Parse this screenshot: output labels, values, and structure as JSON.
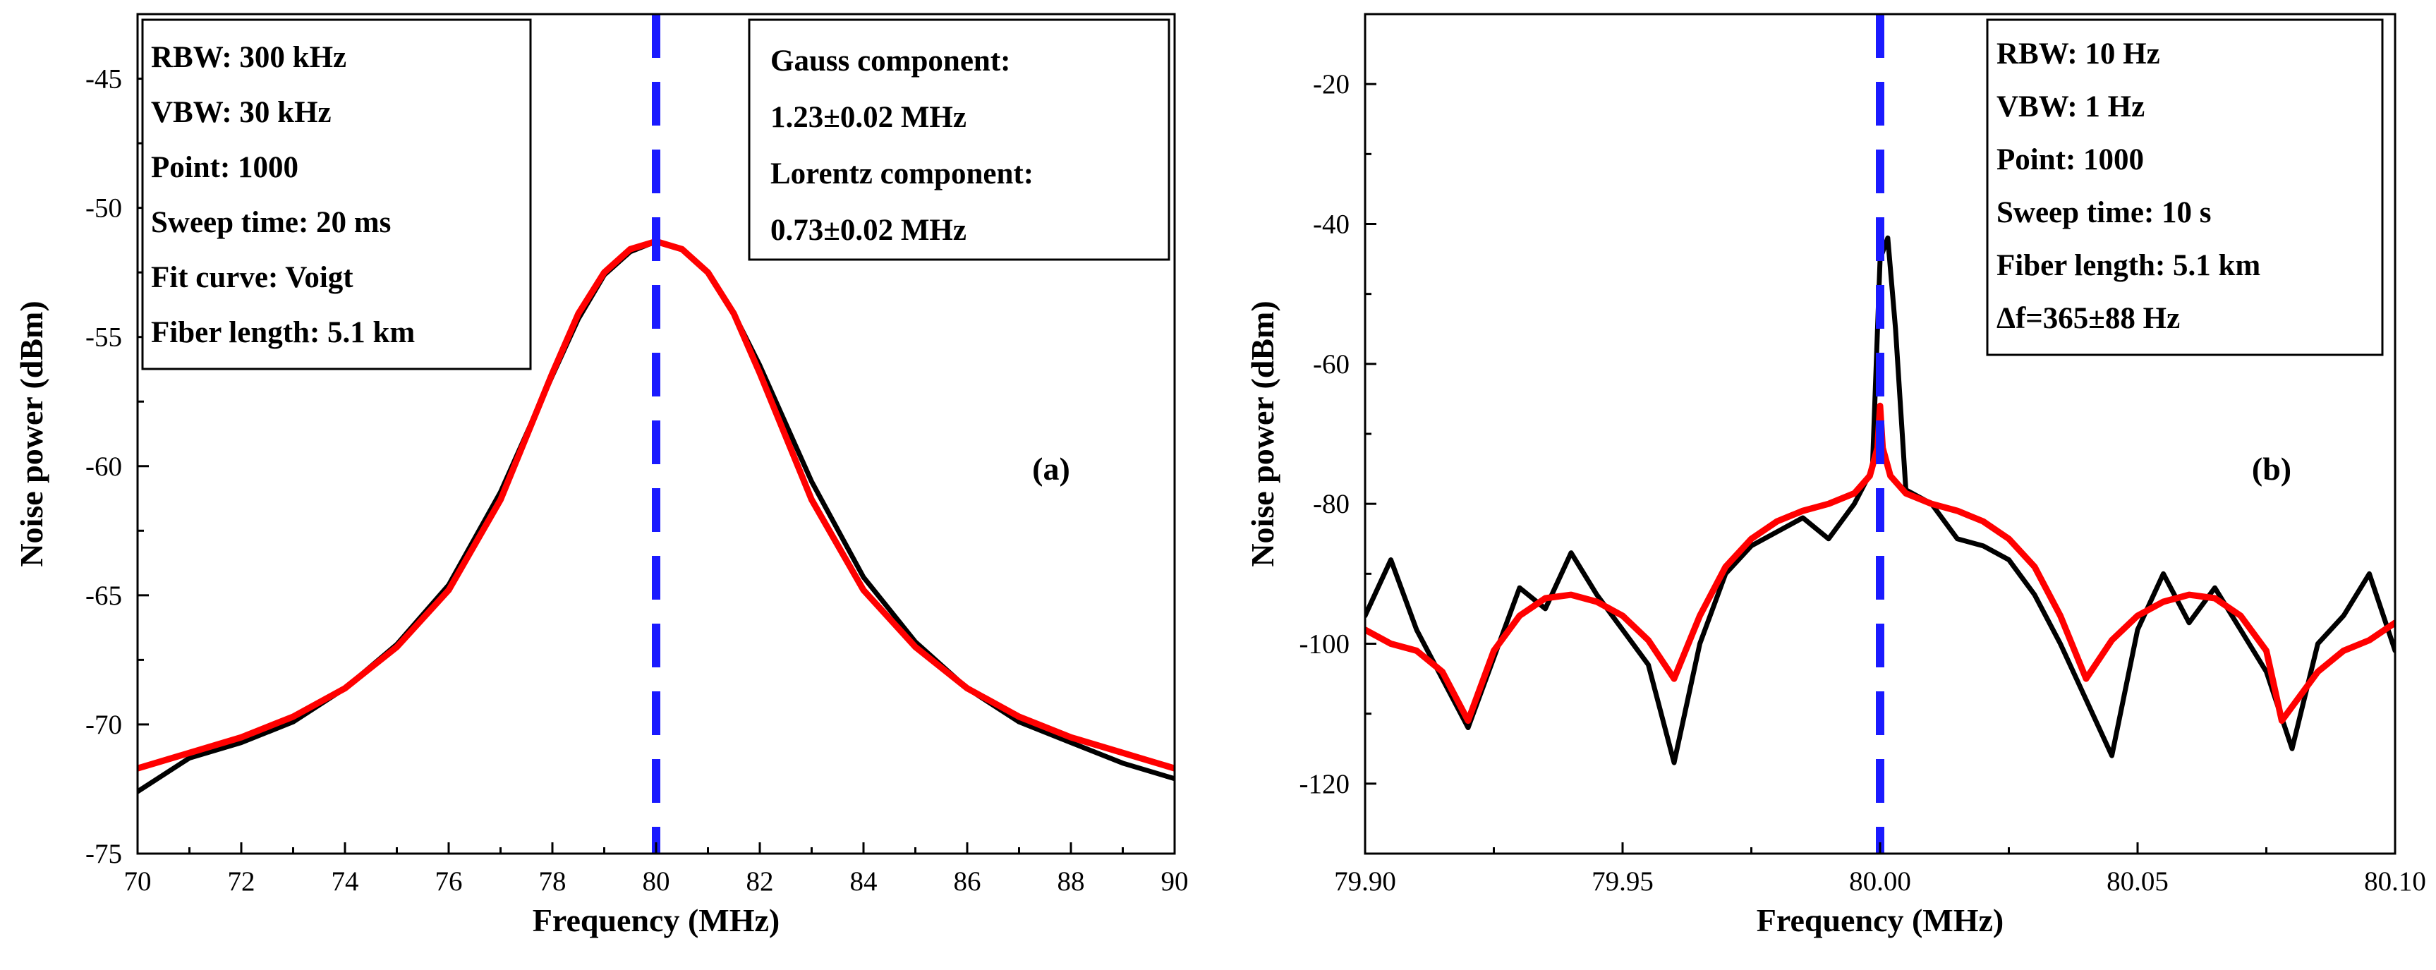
{
  "chart_data": [
    {
      "type": "line",
      "panel_label": "(a)",
      "xlabel": "Frequency (MHz)",
      "ylabel": "Noise power (dBm)",
      "xlim": [
        70,
        90
      ],
      "ylim": [
        -75,
        -42.5
      ],
      "xticks": [
        70,
        72,
        74,
        76,
        78,
        80,
        82,
        84,
        86,
        88,
        90
      ],
      "xtick_labels": [
        "70",
        "72",
        "74",
        "76",
        "78",
        "80",
        "82",
        "84",
        "86",
        "88",
        "90"
      ],
      "yticks": [
        -75,
        -70,
        -65,
        -60,
        -55,
        -50,
        -45
      ],
      "ytick_labels": [
        "-75",
        "-70",
        "-65",
        "-60",
        "-55",
        "-50",
        "-45"
      ],
      "info_left": [
        "RBW: 300 kHz",
        "VBW: 30 kHz",
        "Point: 1000",
        "Sweep time: 20 ms",
        "Fit curve: Voigt",
        "Fiber length: 5.1 km"
      ],
      "info_right": [
        "Gauss component:",
        "1.23±0.02 MHz",
        "Lorentz component:",
        "0.73±0.02 MHz"
      ],
      "center_line_x": 80,
      "series": [
        {
          "color": "#000000",
          "x": [
            70,
            71,
            72,
            73,
            74,
            75,
            76,
            77,
            78,
            78.5,
            79,
            79.5,
            80,
            80.5,
            81,
            81.5,
            82,
            83,
            84,
            85,
            86,
            87,
            88,
            89,
            90
          ],
          "y": [
            -72.6,
            -71.3,
            -70.7,
            -69.9,
            -68.6,
            -66.9,
            -64.6,
            -61.0,
            -56.5,
            -54.3,
            -52.6,
            -51.7,
            -51.3,
            -51.6,
            -52.5,
            -54.1,
            -56.1,
            -60.6,
            -64.3,
            -66.8,
            -68.6,
            -69.9,
            -70.7,
            -71.5,
            -72.1
          ]
        },
        {
          "color": "#ff0000",
          "x": [
            70,
            71,
            72,
            73,
            74,
            75,
            76,
            77,
            78,
            78.5,
            79,
            79.5,
            80,
            80.5,
            81,
            81.5,
            82,
            83,
            84,
            85,
            86,
            87,
            88,
            89,
            90
          ],
          "y": [
            -71.7,
            -71.1,
            -70.5,
            -69.7,
            -68.6,
            -67.0,
            -64.8,
            -61.3,
            -56.4,
            -54.1,
            -52.5,
            -51.6,
            -51.3,
            -51.6,
            -52.5,
            -54.1,
            -56.4,
            -61.3,
            -64.8,
            -67.0,
            -68.6,
            -69.7,
            -70.5,
            -71.1,
            -71.7
          ]
        }
      ]
    },
    {
      "type": "line",
      "panel_label": "(b)",
      "xlabel": "Frequency (MHz)",
      "ylabel": "Noise power (dBm)",
      "xlim": [
        79.9,
        80.1
      ],
      "ylim": [
        -130,
        -10
      ],
      "xticks": [
        79.9,
        79.95,
        80.0,
        80.05,
        80.1
      ],
      "xtick_labels": [
        "79.90",
        "79.95",
        "80.00",
        "80.05",
        "80.10"
      ],
      "yticks": [
        -120,
        -100,
        -80,
        -60,
        -40,
        -20
      ],
      "ytick_labels": [
        "-120",
        "-100",
        "-80",
        "-60",
        "-40",
        "-20"
      ],
      "info_left": [
        "RBW: 10 Hz",
        "VBW: 1 Hz",
        "Point: 1000",
        "Sweep time: 10 s",
        "Fiber length: 5.1 km",
        "Δf=365±88 Hz"
      ],
      "center_line_x": 80.0,
      "series": [
        {
          "color": "#000000",
          "x": [
            79.9,
            79.905,
            79.91,
            79.915,
            79.92,
            79.925,
            79.93,
            79.935,
            79.94,
            79.945,
            79.95,
            79.955,
            79.96,
            79.965,
            79.97,
            79.975,
            79.98,
            79.985,
            79.99,
            79.995,
            79.9985,
            80.0,
            80.0015,
            80.003,
            80.005,
            80.01,
            80.015,
            80.02,
            80.025,
            80.03,
            80.035,
            80.04,
            80.045,
            80.05,
            80.055,
            80.06,
            80.065,
            80.07,
            80.075,
            80.08,
            80.085,
            80.09,
            80.095,
            80.1
          ],
          "y": [
            -96,
            -88,
            -98,
            -105,
            -112,
            -102,
            -92,
            -95,
            -87,
            -93,
            -98,
            -103,
            -117,
            -100,
            -90,
            -86,
            -84,
            -82,
            -85,
            -80,
            -75,
            -45,
            -42,
            -55,
            -78,
            -80,
            -85,
            -86,
            -88,
            -93,
            -100,
            -108,
            -116,
            -98,
            -90,
            -97,
            -92,
            -98,
            -104,
            -115,
            -100,
            -96,
            -90,
            -101
          ]
        },
        {
          "color": "#ff0000",
          "x": [
            79.9,
            79.905,
            79.91,
            79.915,
            79.92,
            79.925,
            79.93,
            79.935,
            79.94,
            79.945,
            79.95,
            79.955,
            79.96,
            79.965,
            79.97,
            79.975,
            79.98,
            79.985,
            79.99,
            79.995,
            79.998,
            79.9995,
            80.0,
            80.0005,
            80.002,
            80.005,
            80.01,
            80.015,
            80.02,
            80.025,
            80.03,
            80.035,
            80.04,
            80.045,
            80.05,
            80.055,
            80.06,
            80.065,
            80.07,
            80.075,
            80.078,
            80.085,
            80.09,
            80.095,
            80.1
          ],
          "y": [
            -98,
            -100,
            -101,
            -104,
            -111,
            -101,
            -96,
            -93.5,
            -93,
            -94,
            -96,
            -99.5,
            -105,
            -96,
            -89,
            -85,
            -82.5,
            -81,
            -80,
            -78.5,
            -76,
            -72,
            -66,
            -72,
            -76,
            -78.5,
            -80,
            -81,
            -82.5,
            -85,
            -89,
            -96,
            -105,
            -99.5,
            -96,
            -94,
            -93,
            -93.5,
            -96,
            -101,
            -111,
            -104,
            -101,
            -99.5,
            -97
          ]
        }
      ]
    }
  ]
}
